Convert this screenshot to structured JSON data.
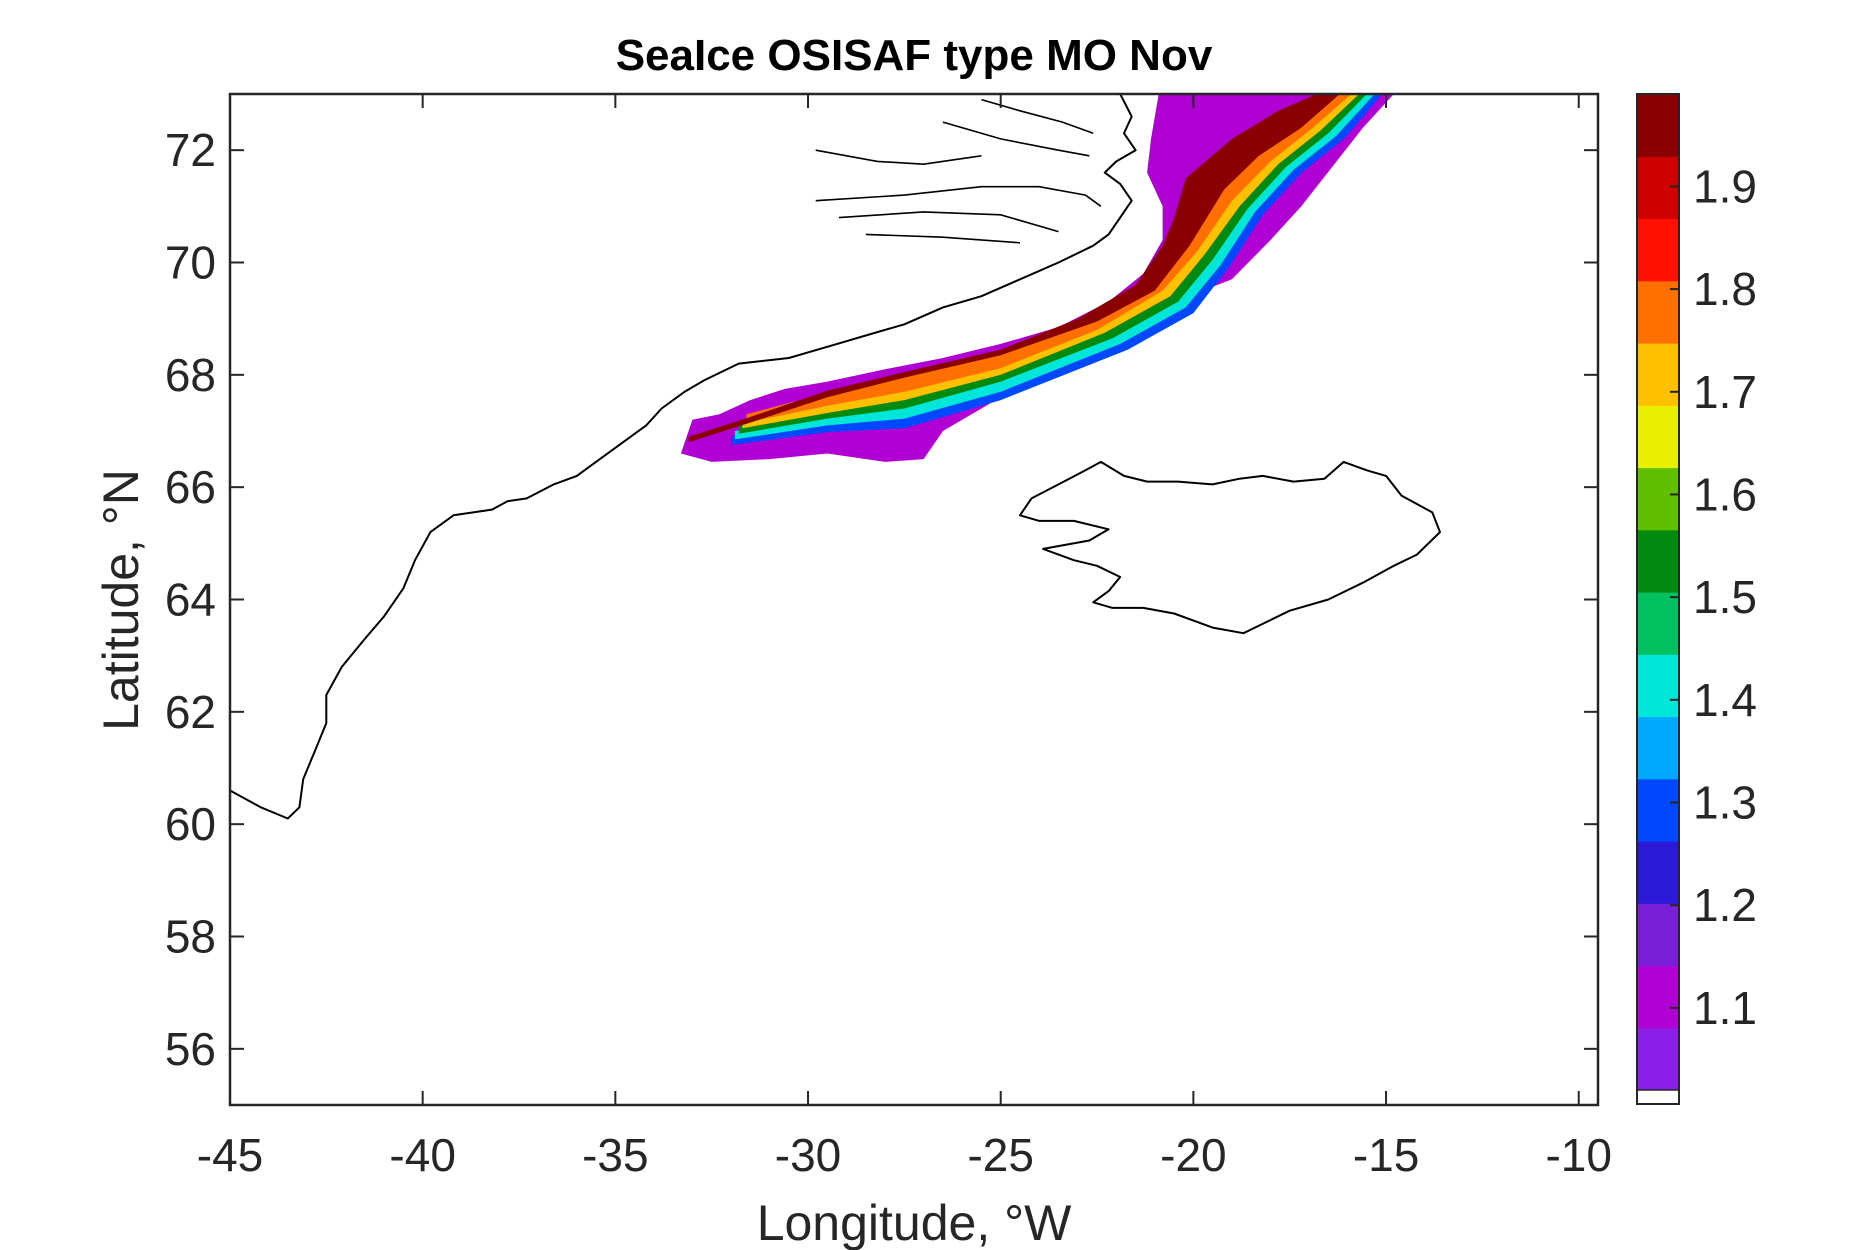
{
  "chart_data": {
    "type": "heatmap",
    "title": "SeaIce OSISAF type MO Nov",
    "xlabel": "Longitude, °W",
    "ylabel": "Latitude, °N",
    "xlim": [
      -45,
      -9.5
    ],
    "ylim": [
      55,
      73
    ],
    "xticks": [
      -45,
      -40,
      -35,
      -30,
      -25,
      -20,
      -15,
      -10
    ],
    "yticks": [
      56,
      58,
      60,
      62,
      64,
      66,
      68,
      70,
      72
    ],
    "xtick_labels": [
      "-45",
      "-40",
      "-35",
      "-30",
      "-25",
      "-20",
      "-15",
      "-10"
    ],
    "ytick_labels": [
      "56",
      "58",
      "60",
      "62",
      "64",
      "66",
      "68",
      "70",
      "72"
    ],
    "colorbar": {
      "range": [
        1.02,
        1.99
      ],
      "ticks": [
        1.1,
        1.2,
        1.3,
        1.4,
        1.5,
        1.6,
        1.7,
        1.8,
        1.9
      ],
      "tick_labels": [
        "1.1",
        "1.2",
        "1.3",
        "1.4",
        "1.5",
        "1.6",
        "1.7",
        "1.8",
        "1.9"
      ],
      "colormap": [
        "#8a1fe8",
        "#b000d4",
        "#7a1fd8",
        "#2a1ad8",
        "#0048ff",
        "#00a8ff",
        "#00e6d8",
        "#00c060",
        "#008a10",
        "#60c000",
        "#e8f000",
        "#ffc000",
        "#ff7000",
        "#ff1000",
        "#d00000",
        "#8a0000"
      ],
      "no_data_color": "#ffffff"
    },
    "field_bands": [
      {
        "level": 1.95,
        "upper": [
          [
            -33.1,
            66.9
          ],
          [
            -31.5,
            67.25
          ],
          [
            -29.5,
            67.72
          ],
          [
            -27.5,
            68.05
          ],
          [
            -25,
            68.45
          ],
          [
            -23,
            69
          ],
          [
            -21.5,
            69.6
          ],
          [
            -20.8,
            70.3
          ],
          [
            -20.5,
            70.8
          ],
          [
            -20.2,
            71.5
          ],
          [
            -19,
            72.2
          ],
          [
            -17.8,
            72.7
          ],
          [
            -16.8,
            73
          ]
        ],
        "lower": [
          [
            -16.2,
            73
          ],
          [
            -17.2,
            72.4
          ],
          [
            -18.3,
            71.9
          ],
          [
            -19.2,
            71.3
          ],
          [
            -20.1,
            70.3
          ],
          [
            -21,
            69.5
          ],
          [
            -22.5,
            68.95
          ],
          [
            -25,
            68.35
          ],
          [
            -27.5,
            67.95
          ],
          [
            -29.5,
            67.6
          ],
          [
            -31.5,
            67.15
          ],
          [
            -33.1,
            66.8
          ]
        ]
      },
      {
        "level": 1.8,
        "upper": [
          [
            -31.6,
            67.3
          ],
          [
            -29.5,
            67.68
          ],
          [
            -27.5,
            68
          ],
          [
            -25,
            68.38
          ],
          [
            -23,
            68.9
          ],
          [
            -21.5,
            69.5
          ],
          [
            -20.4,
            70.2
          ],
          [
            -19.6,
            71.1
          ],
          [
            -18.5,
            71.9
          ],
          [
            -17.3,
            72.5
          ],
          [
            -16.4,
            73
          ]
        ],
        "lower": [
          [
            -15.9,
            73
          ],
          [
            -16.9,
            72.4
          ],
          [
            -18,
            71.8
          ],
          [
            -19,
            71.1
          ],
          [
            -19.9,
            70.2
          ],
          [
            -20.8,
            69.5
          ],
          [
            -22.5,
            68.8
          ],
          [
            -25,
            68.12
          ],
          [
            -27.5,
            67.7
          ],
          [
            -29.5,
            67.45
          ],
          [
            -31.6,
            67.15
          ]
        ]
      },
      {
        "level": 1.7,
        "upper": [
          [
            -31.7,
            67.2
          ],
          [
            -29.5,
            67.55
          ],
          [
            -27.5,
            67.85
          ],
          [
            -25,
            68.2
          ],
          [
            -23,
            68.78
          ],
          [
            -21.5,
            69.35
          ],
          [
            -20.2,
            70.2
          ],
          [
            -19.3,
            71.05
          ],
          [
            -18.2,
            71.8
          ],
          [
            -17.1,
            72.45
          ],
          [
            -16.2,
            73
          ]
        ],
        "lower": [
          [
            -15.7,
            73
          ],
          [
            -16.7,
            72.35
          ],
          [
            -17.8,
            71.75
          ],
          [
            -18.8,
            71
          ],
          [
            -19.7,
            70.15
          ],
          [
            -20.6,
            69.4
          ],
          [
            -22.3,
            68.75
          ],
          [
            -25,
            68
          ],
          [
            -27.5,
            67.55
          ],
          [
            -29.5,
            67.32
          ],
          [
            -31.7,
            67.05
          ]
        ]
      },
      {
        "level": 1.55,
        "upper": [
          [
            -31.8,
            67.1
          ],
          [
            -29.5,
            67.42
          ],
          [
            -27.5,
            67.7
          ],
          [
            -25,
            68.05
          ],
          [
            -23,
            68.7
          ],
          [
            -21.3,
            69.3
          ],
          [
            -20,
            70.1
          ],
          [
            -19.1,
            71
          ],
          [
            -18,
            71.75
          ],
          [
            -16.9,
            72.4
          ],
          [
            -16,
            73
          ]
        ],
        "lower": [
          [
            -15.5,
            73
          ],
          [
            -16.5,
            72.3
          ],
          [
            -17.6,
            71.7
          ],
          [
            -18.6,
            70.95
          ],
          [
            -19.5,
            70.05
          ],
          [
            -20.4,
            69.3
          ],
          [
            -22.1,
            68.65
          ],
          [
            -25,
            67.88
          ],
          [
            -27.5,
            67.4
          ],
          [
            -29.5,
            67.22
          ],
          [
            -31.8,
            66.95
          ]
        ]
      },
      {
        "level": 1.4,
        "upper": [
          [
            -31.9,
            67.0
          ],
          [
            -29.5,
            67.3
          ],
          [
            -27.5,
            67.55
          ],
          [
            -25,
            67.95
          ],
          [
            -22.9,
            68.62
          ],
          [
            -21.1,
            69.22
          ],
          [
            -19.8,
            70.05
          ],
          [
            -18.9,
            70.95
          ],
          [
            -17.8,
            71.7
          ],
          [
            -16.7,
            72.35
          ],
          [
            -15.8,
            73
          ]
        ],
        "lower": [
          [
            -15.3,
            73
          ],
          [
            -16.3,
            72.25
          ],
          [
            -17.4,
            71.65
          ],
          [
            -18.4,
            70.9
          ],
          [
            -19.3,
            69.95
          ],
          [
            -20.2,
            69.2
          ],
          [
            -21.9,
            68.55
          ],
          [
            -25,
            67.7
          ],
          [
            -27.5,
            67.22
          ],
          [
            -29.5,
            67.1
          ],
          [
            -31.9,
            66.85
          ]
        ]
      },
      {
        "level": 1.3,
        "upper": [
          [
            -32.0,
            66.9
          ],
          [
            -29.5,
            67.18
          ],
          [
            -27.5,
            67.38
          ],
          [
            -25,
            67.8
          ],
          [
            -22.8,
            68.5
          ],
          [
            -21,
            69.1
          ],
          [
            -19.6,
            69.95
          ],
          [
            -18.7,
            70.9
          ],
          [
            -17.6,
            71.65
          ],
          [
            -16.5,
            72.3
          ],
          [
            -15.6,
            73
          ]
        ],
        "lower": [
          [
            -15.1,
            73
          ],
          [
            -16.1,
            72.2
          ],
          [
            -17.2,
            71.6
          ],
          [
            -18.2,
            70.85
          ],
          [
            -19.1,
            69.9
          ],
          [
            -20,
            69.1
          ],
          [
            -21.7,
            68.45
          ],
          [
            -25,
            67.55
          ],
          [
            -27.5,
            67.05
          ],
          [
            -29.5,
            66.98
          ],
          [
            -32.0,
            66.75
          ]
        ]
      }
    ],
    "low_region": [
      [
        -33.3,
        66.6
      ],
      [
        -33,
        67.2
      ],
      [
        -32.3,
        67.3
      ],
      [
        -31.5,
        67.55
      ],
      [
        -30.6,
        67.75
      ],
      [
        -29.5,
        67.88
      ],
      [
        -28,
        68.1
      ],
      [
        -26.5,
        68.3
      ],
      [
        -25,
        68.55
      ],
      [
        -23.5,
        68.85
      ],
      [
        -22.2,
        69.3
      ],
      [
        -21.3,
        69.8
      ],
      [
        -20.8,
        70.4
      ],
      [
        -20.8,
        71
      ],
      [
        -21.2,
        71.6
      ],
      [
        -21.1,
        72.2
      ],
      [
        -20.9,
        73
      ],
      [
        -14.8,
        73
      ],
      [
        -15.6,
        72.4
      ],
      [
        -16.4,
        71.7
      ],
      [
        -17.2,
        71
      ],
      [
        -18,
        70.4
      ],
      [
        -19,
        69.7
      ],
      [
        -20.5,
        69.3
      ],
      [
        -22,
        68.7
      ],
      [
        -23.5,
        68.2
      ],
      [
        -25,
        67.6
      ],
      [
        -26.5,
        67.0
      ],
      [
        -27,
        66.5
      ],
      [
        -28,
        66.45
      ],
      [
        -29.5,
        66.6
      ],
      [
        -31,
        66.5
      ],
      [
        -32.5,
        66.45
      ]
    ],
    "iceland_coast": [
      [
        -24.5,
        65.5
      ],
      [
        -24.2,
        65.8
      ],
      [
        -23.5,
        66.05
      ],
      [
        -22.8,
        66.3
      ],
      [
        -22.4,
        66.45
      ],
      [
        -21.8,
        66.2
      ],
      [
        -21.2,
        66.1
      ],
      [
        -20.4,
        66.1
      ],
      [
        -19.5,
        66.05
      ],
      [
        -18.8,
        66.15
      ],
      [
        -18.2,
        66.2
      ],
      [
        -17.4,
        66.1
      ],
      [
        -16.6,
        66.15
      ],
      [
        -16.1,
        66.45
      ],
      [
        -15.5,
        66.3
      ],
      [
        -15,
        66.2
      ],
      [
        -14.6,
        65.85
      ],
      [
        -13.8,
        65.55
      ],
      [
        -13.6,
        65.2
      ],
      [
        -14.2,
        64.8
      ],
      [
        -14.8,
        64.6
      ],
      [
        -15.6,
        64.3
      ],
      [
        -16.5,
        64.0
      ],
      [
        -17.5,
        63.8
      ],
      [
        -18.7,
        63.4
      ],
      [
        -19.5,
        63.5
      ],
      [
        -20.5,
        63.75
      ],
      [
        -21.3,
        63.85
      ],
      [
        -22.1,
        63.85
      ],
      [
        -22.6,
        63.95
      ],
      [
        -22.2,
        64.15
      ],
      [
        -21.9,
        64.4
      ],
      [
        -22.5,
        64.6
      ],
      [
        -23.1,
        64.7
      ],
      [
        -23.9,
        64.9
      ],
      [
        -22.7,
        65.05
      ],
      [
        -22.2,
        65.25
      ],
      [
        -23.1,
        65.4
      ],
      [
        -24.0,
        65.4
      ]
    ],
    "greenland_coast": [
      [
        -45,
        60.6
      ],
      [
        -44.2,
        60.3
      ],
      [
        -43.5,
        60.1
      ],
      [
        -43.2,
        60.3
      ],
      [
        -43.1,
        60.8
      ],
      [
        -42.8,
        61.3
      ],
      [
        -42.5,
        61.8
      ],
      [
        -42.5,
        62.3
      ],
      [
        -42.1,
        62.8
      ],
      [
        -41.5,
        63.3
      ],
      [
        -41.0,
        63.7
      ],
      [
        -40.5,
        64.2
      ],
      [
        -40.2,
        64.7
      ],
      [
        -39.8,
        65.2
      ],
      [
        -39.2,
        65.5
      ],
      [
        -38.2,
        65.6
      ],
      [
        -37.8,
        65.75
      ],
      [
        -37.3,
        65.8
      ],
      [
        -36.6,
        66.05
      ],
      [
        -36.0,
        66.2
      ],
      [
        -35.4,
        66.5
      ],
      [
        -34.8,
        66.8
      ],
      [
        -34.2,
        67.1
      ],
      [
        -33.8,
        67.4
      ],
      [
        -33.2,
        67.7
      ],
      [
        -32.7,
        67.9
      ],
      [
        -31.8,
        68.2
      ],
      [
        -30.5,
        68.3
      ],
      [
        -29.5,
        68.5
      ],
      [
        -28.5,
        68.7
      ],
      [
        -27.5,
        68.9
      ],
      [
        -26.5,
        69.2
      ],
      [
        -25.5,
        69.4
      ],
      [
        -24.5,
        69.7
      ],
      [
        -23.5,
        70.0
      ],
      [
        -22.6,
        70.3
      ],
      [
        -22.2,
        70.5
      ],
      [
        -21.8,
        70.9
      ],
      [
        -21.6,
        71.1
      ],
      [
        -21.9,
        71.4
      ],
      [
        -22.3,
        71.6
      ],
      [
        -22.0,
        71.8
      ],
      [
        -21.5,
        72.0
      ],
      [
        -21.8,
        72.3
      ],
      [
        -21.6,
        72.6
      ],
      [
        -21.9,
        73
      ]
    ],
    "fjord_lines": [
      [
        [
          -29.8,
          71.1
        ],
        [
          -27.5,
          71.2
        ],
        [
          -25.5,
          71.35
        ],
        [
          -24.0,
          71.35
        ],
        [
          -22.8,
          71.2
        ],
        [
          -22.4,
          71.0
        ]
      ],
      [
        [
          -29.2,
          70.8
        ],
        [
          -27.0,
          70.9
        ],
        [
          -25.0,
          70.85
        ],
        [
          -23.5,
          70.55
        ]
      ],
      [
        [
          -28.5,
          70.5
        ],
        [
          -26.5,
          70.45
        ],
        [
          -24.5,
          70.35
        ]
      ],
      [
        [
          -29.8,
          72.0
        ],
        [
          -28.2,
          71.8
        ],
        [
          -27.0,
          71.75
        ],
        [
          -25.5,
          71.9
        ]
      ],
      [
        [
          -25.5,
          72.9
        ],
        [
          -24.5,
          72.7
        ],
        [
          -23.4,
          72.5
        ],
        [
          -22.6,
          72.3
        ]
      ],
      [
        [
          -26.5,
          72.5
        ],
        [
          -25.0,
          72.2
        ],
        [
          -23.5,
          72.0
        ],
        [
          -22.7,
          71.9
        ]
      ]
    ]
  }
}
